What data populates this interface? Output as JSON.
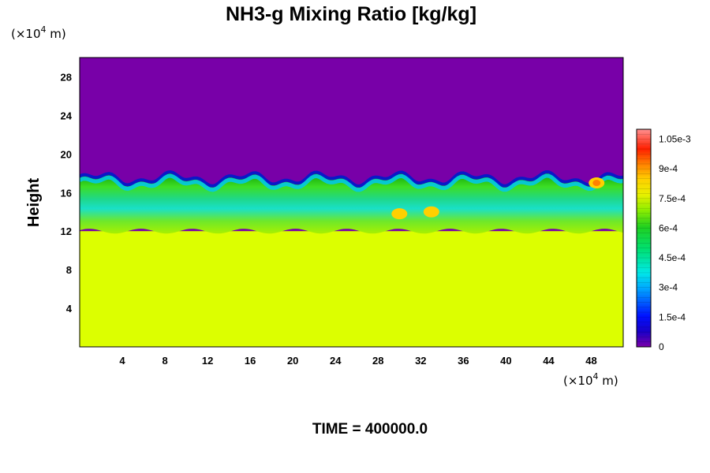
{
  "chart_data": {
    "type": "heatmap",
    "title": "NH3-g Mixing Ratio [kg/kg]",
    "ylabel": "Height",
    "xlabel": "",
    "x_unit_prefix": "(×10",
    "x_unit_exp": "4",
    "x_unit_suffix": " m)",
    "y_unit_prefix": "(×10",
    "y_unit_exp": "4",
    "y_unit_suffix": " m)",
    "xlim": [
      0,
      51
    ],
    "ylim": [
      0,
      30
    ],
    "x_ticks": [
      4,
      8,
      12,
      16,
      20,
      24,
      28,
      32,
      36,
      40,
      44,
      48
    ],
    "y_ticks": [
      4,
      8,
      12,
      16,
      20,
      24,
      28
    ],
    "colorbar": {
      "range": [
        0,
        0.0011
      ],
      "labels": [
        {
          "value": 0,
          "text": "0"
        },
        {
          "value": 0.00015,
          "text": "1.5e-4"
        },
        {
          "value": 0.0003,
          "text": "3e-4"
        },
        {
          "value": 0.00045,
          "text": "4.5e-4"
        },
        {
          "value": 0.0006,
          "text": "6e-4"
        },
        {
          "value": 0.00075,
          "text": "7.5e-4"
        },
        {
          "value": 0.0009,
          "text": "9e-4"
        },
        {
          "value": 0.00105,
          "text": "1.05e-3"
        }
      ]
    },
    "regions": [
      {
        "y_range": [
          0,
          12
        ],
        "value": 0.00078,
        "desc": "uniform lower layer"
      },
      {
        "y_range": [
          12,
          17.5
        ],
        "value": 0.00055,
        "desc": "turbulent mixing layer"
      },
      {
        "y_range": [
          17.5,
          30
        ],
        "value": 0.0,
        "desc": "upper layer"
      }
    ],
    "hotspots": [
      {
        "x": 30,
        "y": 13.8,
        "value": 0.0009
      },
      {
        "x": 33,
        "y": 14.0,
        "value": 0.00085
      },
      {
        "x": 48.5,
        "y": 17.0,
        "value": 0.00095
      }
    ]
  },
  "footer": {
    "time_label": "TIME = 400000.0"
  }
}
